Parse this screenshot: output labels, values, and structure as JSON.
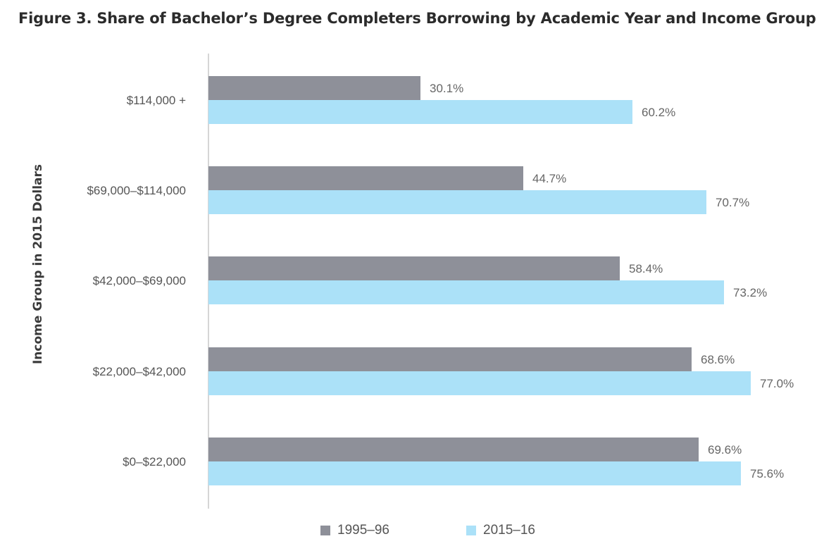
{
  "chart_data": {
    "type": "bar",
    "orientation": "horizontal",
    "title": "Figure 3. Share of Bachelor’s Degree Completers Borrowing by Academic Year and Income Group",
    "ylabel": "Income Group in 2015 Dollars",
    "xlabel": "",
    "categories": [
      "$114,000 +",
      "$69,000–$114,000",
      "$42,000–$69,000",
      "$22,000–$42,000",
      "$0–$22,000"
    ],
    "series": [
      {
        "name": "1995–96",
        "color": "#8e9099",
        "values": [
          30.1,
          44.7,
          58.4,
          68.6,
          69.6
        ],
        "labels": [
          "30.1%",
          "44.7%",
          "58.4%",
          "68.6%",
          "69.6%"
        ]
      },
      {
        "name": "2015–16",
        "color": "#abe1f8",
        "values": [
          60.2,
          70.7,
          73.2,
          77.0,
          75.6
        ],
        "labels": [
          "60.2%",
          "70.7%",
          "73.2%",
          "77.0%",
          "75.6%"
        ]
      }
    ],
    "xlim": [
      0,
      80
    ],
    "grid": false,
    "legend_position": "bottom"
  }
}
